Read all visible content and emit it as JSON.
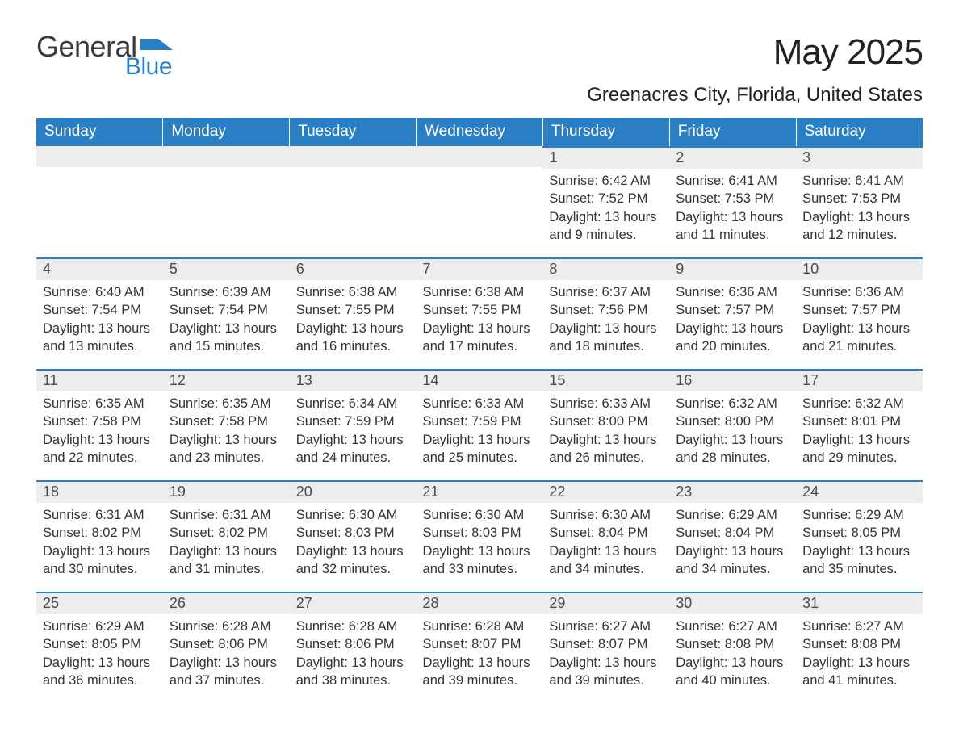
{
  "logo": {
    "text1": "General",
    "text2": "Blue",
    "shape_color": "#2a7fc4"
  },
  "title": "May 2025",
  "location": "Greenacres City, Florida, United States",
  "colors": {
    "header_bg": "#2a7fc4",
    "header_text": "#ffffff",
    "daynum_bg": "#ededed",
    "daynum_border": "#2a7fc4",
    "body_text": "#333333",
    "page_bg": "#ffffff"
  },
  "typography": {
    "title_fontsize": 44,
    "location_fontsize": 24,
    "header_fontsize": 19,
    "daynum_fontsize": 18,
    "body_fontsize": 16.5
  },
  "weekdays": [
    "Sunday",
    "Monday",
    "Tuesday",
    "Wednesday",
    "Thursday",
    "Friday",
    "Saturday"
  ],
  "weeks": [
    [
      null,
      null,
      null,
      null,
      {
        "n": "1",
        "sunrise": "6:42 AM",
        "sunset": "7:52 PM",
        "daylight": "13 hours and 9 minutes."
      },
      {
        "n": "2",
        "sunrise": "6:41 AM",
        "sunset": "7:53 PM",
        "daylight": "13 hours and 11 minutes."
      },
      {
        "n": "3",
        "sunrise": "6:41 AM",
        "sunset": "7:53 PM",
        "daylight": "13 hours and 12 minutes."
      }
    ],
    [
      {
        "n": "4",
        "sunrise": "6:40 AM",
        "sunset": "7:54 PM",
        "daylight": "13 hours and 13 minutes."
      },
      {
        "n": "5",
        "sunrise": "6:39 AM",
        "sunset": "7:54 PM",
        "daylight": "13 hours and 15 minutes."
      },
      {
        "n": "6",
        "sunrise": "6:38 AM",
        "sunset": "7:55 PM",
        "daylight": "13 hours and 16 minutes."
      },
      {
        "n": "7",
        "sunrise": "6:38 AM",
        "sunset": "7:55 PM",
        "daylight": "13 hours and 17 minutes."
      },
      {
        "n": "8",
        "sunrise": "6:37 AM",
        "sunset": "7:56 PM",
        "daylight": "13 hours and 18 minutes."
      },
      {
        "n": "9",
        "sunrise": "6:36 AM",
        "sunset": "7:57 PM",
        "daylight": "13 hours and 20 minutes."
      },
      {
        "n": "10",
        "sunrise": "6:36 AM",
        "sunset": "7:57 PM",
        "daylight": "13 hours and 21 minutes."
      }
    ],
    [
      {
        "n": "11",
        "sunrise": "6:35 AM",
        "sunset": "7:58 PM",
        "daylight": "13 hours and 22 minutes."
      },
      {
        "n": "12",
        "sunrise": "6:35 AM",
        "sunset": "7:58 PM",
        "daylight": "13 hours and 23 minutes."
      },
      {
        "n": "13",
        "sunrise": "6:34 AM",
        "sunset": "7:59 PM",
        "daylight": "13 hours and 24 minutes."
      },
      {
        "n": "14",
        "sunrise": "6:33 AM",
        "sunset": "7:59 PM",
        "daylight": "13 hours and 25 minutes."
      },
      {
        "n": "15",
        "sunrise": "6:33 AM",
        "sunset": "8:00 PM",
        "daylight": "13 hours and 26 minutes."
      },
      {
        "n": "16",
        "sunrise": "6:32 AM",
        "sunset": "8:00 PM",
        "daylight": "13 hours and 28 minutes."
      },
      {
        "n": "17",
        "sunrise": "6:32 AM",
        "sunset": "8:01 PM",
        "daylight": "13 hours and 29 minutes."
      }
    ],
    [
      {
        "n": "18",
        "sunrise": "6:31 AM",
        "sunset": "8:02 PM",
        "daylight": "13 hours and 30 minutes."
      },
      {
        "n": "19",
        "sunrise": "6:31 AM",
        "sunset": "8:02 PM",
        "daylight": "13 hours and 31 minutes."
      },
      {
        "n": "20",
        "sunrise": "6:30 AM",
        "sunset": "8:03 PM",
        "daylight": "13 hours and 32 minutes."
      },
      {
        "n": "21",
        "sunrise": "6:30 AM",
        "sunset": "8:03 PM",
        "daylight": "13 hours and 33 minutes."
      },
      {
        "n": "22",
        "sunrise": "6:30 AM",
        "sunset": "8:04 PM",
        "daylight": "13 hours and 34 minutes."
      },
      {
        "n": "23",
        "sunrise": "6:29 AM",
        "sunset": "8:04 PM",
        "daylight": "13 hours and 34 minutes."
      },
      {
        "n": "24",
        "sunrise": "6:29 AM",
        "sunset": "8:05 PM",
        "daylight": "13 hours and 35 minutes."
      }
    ],
    [
      {
        "n": "25",
        "sunrise": "6:29 AM",
        "sunset": "8:05 PM",
        "daylight": "13 hours and 36 minutes."
      },
      {
        "n": "26",
        "sunrise": "6:28 AM",
        "sunset": "8:06 PM",
        "daylight": "13 hours and 37 minutes."
      },
      {
        "n": "27",
        "sunrise": "6:28 AM",
        "sunset": "8:06 PM",
        "daylight": "13 hours and 38 minutes."
      },
      {
        "n": "28",
        "sunrise": "6:28 AM",
        "sunset": "8:07 PM",
        "daylight": "13 hours and 39 minutes."
      },
      {
        "n": "29",
        "sunrise": "6:27 AM",
        "sunset": "8:07 PM",
        "daylight": "13 hours and 39 minutes."
      },
      {
        "n": "30",
        "sunrise": "6:27 AM",
        "sunset": "8:08 PM",
        "daylight": "13 hours and 40 minutes."
      },
      {
        "n": "31",
        "sunrise": "6:27 AM",
        "sunset": "8:08 PM",
        "daylight": "13 hours and 41 minutes."
      }
    ]
  ],
  "labels": {
    "sunrise": "Sunrise: ",
    "sunset": "Sunset: ",
    "daylight": "Daylight: "
  }
}
